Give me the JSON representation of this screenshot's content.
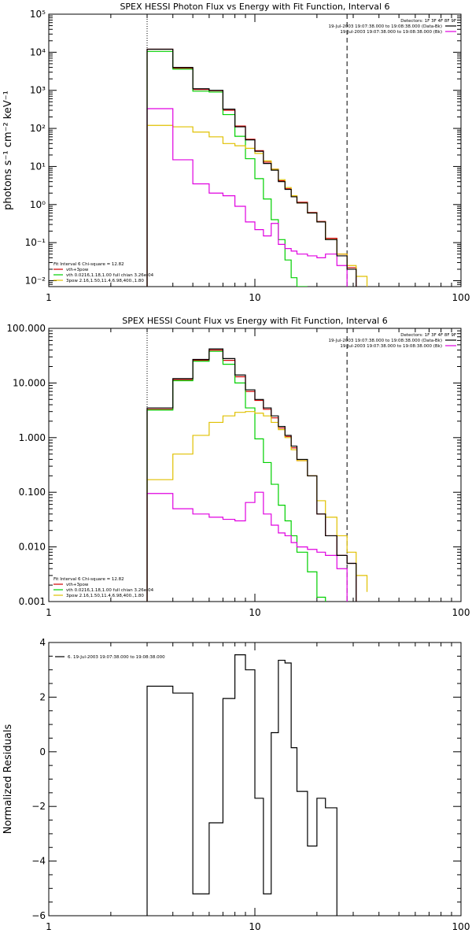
{
  "chart_data": [
    {
      "type": "line",
      "title": "SPEX HESSI Photon Flux vs Energy with Fit Function, Interval 6",
      "xlabel": "",
      "ylabel": "photons s⁻¹ cm⁻² keV⁻¹",
      "xscale": "log",
      "yscale": "log",
      "xlim": [
        1,
        100
      ],
      "ylim": [
        0.007,
        100000
      ],
      "x_ticks": [
        1,
        10,
        100
      ],
      "x_tick_labels": [
        "1",
        "10",
        "100"
      ],
      "y_ticks": [
        0.01,
        0.1,
        1,
        10,
        100,
        1000,
        10000,
        100000
      ],
      "y_tick_labels": [
        "10⁻²",
        "10⁻¹",
        "10⁰",
        "10¹",
        "10²",
        "10³",
        "10⁴",
        "10⁵"
      ],
      "vlines": [
        {
          "x": 3,
          "style": "dotted"
        },
        {
          "x": 28,
          "style": "dashed"
        }
      ],
      "legend_topright": [
        "Detectors: 1F 3F 4F 8F 9F",
        "19-Jul-2003 19:07:38.000 to 19:08:38.000 (Data-Bk)",
        "19-Jul-2003 19:07:38.000 to 19:08:38.000 (Bk)"
      ],
      "legend_bottomleft": [
        "Fit Interval  6    Chi-square = 12.82",
        "vth+3pow",
        "vth 0.0216,1.18,1.00  full chian 3.26e-04",
        "3pow 2.16,1.50,11.4,6.98,400.,1.80"
      ],
      "bin_edges": [
        3,
        4,
        5,
        6,
        7,
        8,
        9,
        10,
        11,
        12,
        13,
        14,
        15,
        16,
        18,
        20,
        22,
        25,
        28,
        31,
        35
      ],
      "series": [
        {
          "name": "Data-Bk",
          "color": "#000000",
          "values": [
            12000,
            4000,
            1100,
            1000,
            320,
            110,
            50,
            25,
            12,
            8,
            4,
            2.5,
            1.6,
            1.1,
            0.6,
            0.35,
            0.12,
            0.045,
            0.02
          ]
        },
        {
          "name": "vth+3pow",
          "color": "#d00000",
          "values": [
            12000,
            3800,
            1050,
            980,
            300,
            115,
            52,
            26,
            13,
            8.5,
            4.2,
            2.6,
            1.7,
            1.15,
            0.62,
            0.36,
            0.13,
            0.05,
            0.022
          ]
        },
        {
          "name": "vth",
          "color": "#00d000",
          "values": [
            10500,
            3600,
            950,
            900,
            230,
            62,
            16,
            4.8,
            1.4,
            0.4,
            0.12,
            0.035,
            0.012,
            0.004
          ]
        },
        {
          "name": "3pow",
          "color": "#e0c000",
          "values": [
            120,
            110,
            80,
            60,
            40,
            35,
            30,
            22,
            14,
            8.5,
            4.5,
            2.8,
            1.7,
            1.1,
            0.6,
            0.35,
            0.12,
            0.05,
            0.025,
            0.013,
            0.007
          ]
        },
        {
          "name": "Bk",
          "color": "#e000e0",
          "values": [
            330,
            15,
            3.5,
            2,
            1.7,
            0.9,
            0.35,
            0.22,
            0.15,
            0.32,
            0.09,
            0.07,
            0.06,
            0.05,
            0.045,
            0.04,
            0.05,
            0.025
          ]
        }
      ]
    },
    {
      "type": "line",
      "title": "SPEX HESSI Count Flux vs Energy with Fit Function, Interval 6",
      "xlabel": "",
      "ylabel": "",
      "xscale": "log",
      "yscale": "log",
      "xlim": [
        1,
        100
      ],
      "ylim": [
        0.001,
        100
      ],
      "x_ticks": [
        1,
        10,
        100
      ],
      "x_tick_labels": [
        "1",
        "10",
        "100"
      ],
      "y_ticks": [
        0.001,
        0.01,
        0.1,
        1,
        10,
        100
      ],
      "y_tick_labels": [
        "0.001",
        "0.010",
        "0.100",
        "1.000",
        "10.000",
        "100.000"
      ],
      "vlines": [
        {
          "x": 3,
          "style": "dotted"
        },
        {
          "x": 28,
          "style": "dashed"
        }
      ],
      "legend_topright": [
        "Detectors: 1F 3F 4F 8F 9F",
        "19-Jul-2003 19:07:38.000 to 19:08:38.000 (Data-Bk)",
        "19-Jul-2003 19:07:38.000 to 19:08:38.000 (Bk)"
      ],
      "legend_bottomleft": [
        "Fit Interval  6    Chi-square = 12.82",
        "vth+3pow",
        "vth 0.0216,1.18,1.00  full chian 3.26e-04",
        "3pow 2.16,1.50,11.4,6.98,400.,1.80"
      ],
      "bin_edges": [
        3,
        4,
        5,
        6,
        7,
        8,
        9,
        10,
        11,
        12,
        13,
        14,
        15,
        16,
        18,
        20,
        22,
        25,
        28,
        31,
        35
      ],
      "series": [
        {
          "name": "Data-Bk",
          "color": "#000000",
          "values": [
            3.5,
            12,
            27,
            42,
            28,
            14,
            7.5,
            5,
            3.5,
            2.5,
            1.6,
            1.1,
            0.7,
            0.4,
            0.2,
            0.04,
            0.016,
            0.007,
            0.005
          ]
        },
        {
          "name": "vth+3pow",
          "color": "#d00000",
          "values": [
            3.3,
            11.5,
            26,
            40,
            26,
            13,
            7,
            4.8,
            3.3,
            2.3,
            1.5,
            1.05,
            0.65,
            0.38,
            0.2,
            0.04,
            0.016,
            0.007,
            0.005
          ]
        },
        {
          "name": "vth",
          "color": "#00d000",
          "values": [
            3.2,
            11,
            25,
            38,
            22,
            10,
            3.5,
            0.95,
            0.35,
            0.14,
            0.058,
            0.03,
            0.016,
            0.008,
            0.0035,
            0.0012
          ]
        },
        {
          "name": "3pow",
          "color": "#e0c000",
          "values": [
            0.17,
            0.5,
            1.1,
            1.9,
            2.5,
            2.9,
            3,
            2.8,
            2.5,
            1.9,
            1.4,
            1.0,
            0.6,
            0.38,
            0.2,
            0.07,
            0.035,
            0.016,
            0.008,
            0.003,
            0.0015
          ]
        },
        {
          "name": "Bk",
          "color": "#e000e0",
          "values": [
            0.095,
            0.05,
            0.04,
            0.035,
            0.032,
            0.03,
            0.065,
            0.1,
            0.04,
            0.025,
            0.018,
            0.016,
            0.012,
            0.01,
            0.009,
            0.008,
            0.007,
            0.004
          ]
        }
      ]
    },
    {
      "type": "line",
      "title": "",
      "xlabel": "",
      "ylabel": "Normalized Residuals",
      "xscale": "log",
      "yscale": "linear",
      "xlim": [
        1,
        100
      ],
      "ylim": [
        -6,
        4
      ],
      "x_ticks": [
        1,
        10,
        100
      ],
      "x_tick_labels": [
        "1",
        "10",
        "100"
      ],
      "y_ticks": [
        -6,
        -4,
        -2,
        0,
        2,
        4
      ],
      "y_tick_labels": [
        "−6",
        "−4",
        "−2",
        "0",
        "2",
        "4"
      ],
      "legend_topleft": [
        "6. 19-Jul-2003 19:07:38.000 to 19:08:38.000"
      ],
      "bin_edges": [
        3,
        4,
        5,
        6,
        7,
        8,
        9,
        10,
        11,
        12,
        13,
        14,
        15,
        16,
        18,
        20,
        22,
        25,
        28
      ],
      "series": [
        {
          "name": "",
          "color": "#000000",
          "values": [
            2.4,
            2.15,
            -5.2,
            -2.6,
            1.95,
            3.55,
            3.0,
            -1.7,
            -5.2,
            0.7,
            3.35,
            3.25,
            0.15,
            -1.45,
            -3.45,
            -1.7,
            -2.05
          ]
        }
      ]
    }
  ]
}
